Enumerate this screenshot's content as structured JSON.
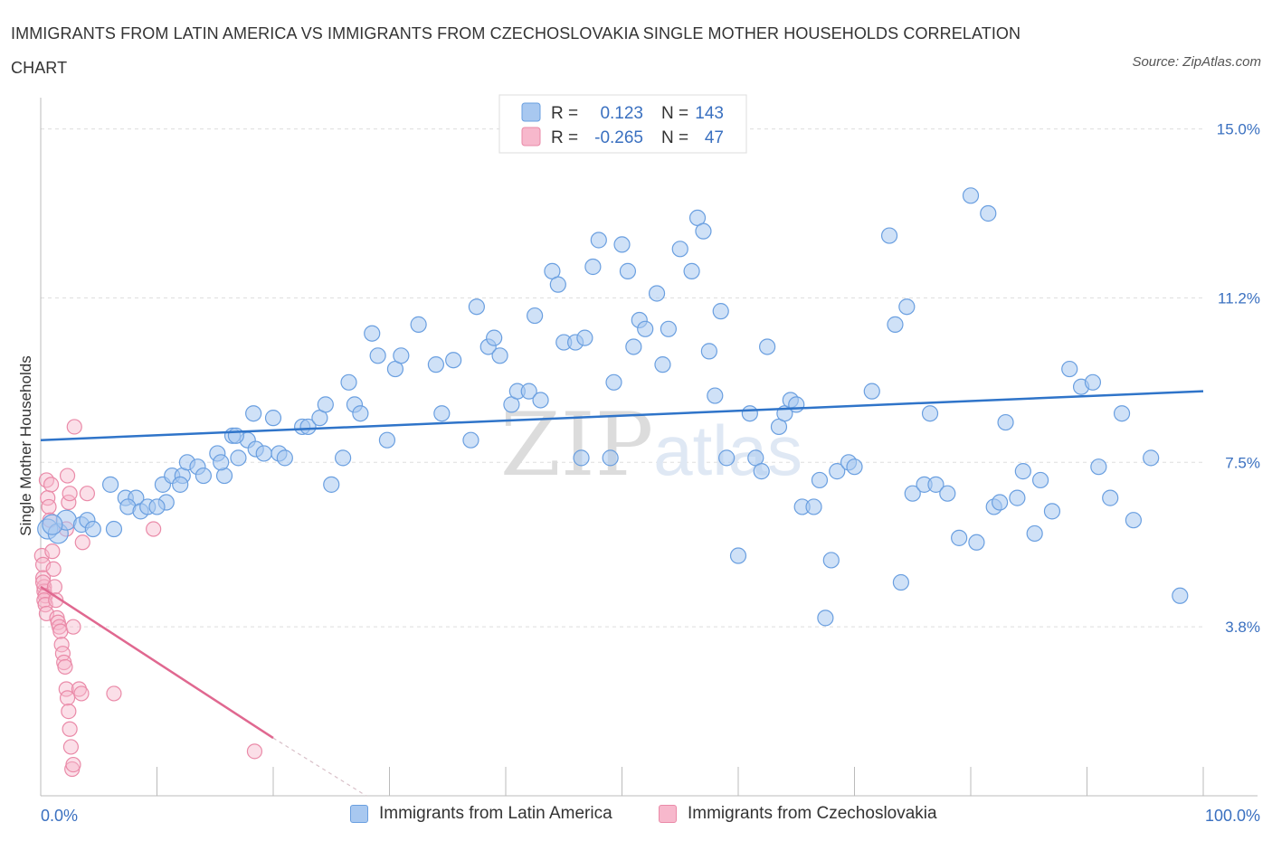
{
  "title": "IMMIGRANTS FROM LATIN AMERICA VS IMMIGRANTS FROM CZECHOSLOVAKIA SINGLE MOTHER HOUSEHOLDS CORRELATION CHART",
  "source": "Source: ZipAtlas.com",
  "watermark": "ZIPatlas",
  "colors": {
    "blue_fill": "#a8c8f0",
    "blue_stroke": "#6a9fe0",
    "blue_line": "#2f74c9",
    "pink_fill": "#f7b8cc",
    "pink_stroke": "#ea8aa8",
    "pink_line": "#e06890",
    "axis_label": "#3a70c0",
    "grid": "#dddddd"
  },
  "legend_top": {
    "rows": [
      {
        "r_label": "R =",
        "r_value": "0.123",
        "n_label": "N =",
        "n_value": "143"
      },
      {
        "r_label": "R =",
        "r_value": "-0.265",
        "n_label": "N =",
        "n_value": "47"
      }
    ]
  },
  "legend_bottom": [
    "Immigrants from Latin America",
    "Immigrants from Czechoslovakia"
  ],
  "chart_data": {
    "type": "scatter",
    "title": "IMMIGRANTS FROM LATIN AMERICA VS IMMIGRANTS FROM CZECHOSLOVAKIA SINGLE MOTHER HOUSEHOLDS CORRELATION CHART",
    "xlabel": "",
    "ylabel": "Single Mother Households",
    "xlim": [
      0,
      100
    ],
    "ylim": [
      0,
      15.5
    ],
    "x_tick_labels": [
      "0.0%",
      "100.0%"
    ],
    "y_ticks": [
      3.8,
      7.5,
      11.2,
      15.0
    ],
    "y_tick_labels": [
      "3.8%",
      "7.5%",
      "11.2%",
      "15.0%"
    ],
    "grid": "horizontal dashed",
    "legend_placement": "top-center and bottom",
    "series": [
      {
        "name": "Immigrants from Latin America",
        "R": 0.123,
        "N": 143,
        "trend": {
          "x": [
            0,
            100
          ],
          "y": [
            8.0,
            9.1
          ]
        },
        "points": [
          [
            0.6,
            6.0
          ],
          [
            1.5,
            5.9
          ],
          [
            2.2,
            6.2
          ],
          [
            1.0,
            6.1
          ],
          [
            3.5,
            6.1
          ],
          [
            4.0,
            6.2
          ],
          [
            4.5,
            6.0
          ],
          [
            6.3,
            6.0
          ],
          [
            7.3,
            6.7
          ],
          [
            6.0,
            7.0
          ],
          [
            8.2,
            6.7
          ],
          [
            7.5,
            6.5
          ],
          [
            8.6,
            6.4
          ],
          [
            9.2,
            6.5
          ],
          [
            10.8,
            6.6
          ],
          [
            10.0,
            6.5
          ],
          [
            10.5,
            7.0
          ],
          [
            11.3,
            7.2
          ],
          [
            12.2,
            7.2
          ],
          [
            12.6,
            7.5
          ],
          [
            13.5,
            7.4
          ],
          [
            12.0,
            7.0
          ],
          [
            14.0,
            7.2
          ],
          [
            15.2,
            7.7
          ],
          [
            15.8,
            7.2
          ],
          [
            15.5,
            7.5
          ],
          [
            16.5,
            8.1
          ],
          [
            17.0,
            7.6
          ],
          [
            17.8,
            8.0
          ],
          [
            18.5,
            7.8
          ],
          [
            19.2,
            7.7
          ],
          [
            20.5,
            7.7
          ],
          [
            21.0,
            7.6
          ],
          [
            16.8,
            8.1
          ],
          [
            18.3,
            8.6
          ],
          [
            20.0,
            8.5
          ],
          [
            22.5,
            8.3
          ],
          [
            23.0,
            8.3
          ],
          [
            24.0,
            8.5
          ],
          [
            24.5,
            8.8
          ],
          [
            25.0,
            7.0
          ],
          [
            26.0,
            7.6
          ],
          [
            26.5,
            9.3
          ],
          [
            27.0,
            8.8
          ],
          [
            27.5,
            8.6
          ],
          [
            28.5,
            10.4
          ],
          [
            29.0,
            9.9
          ],
          [
            29.8,
            8.0
          ],
          [
            30.5,
            9.6
          ],
          [
            31.0,
            9.9
          ],
          [
            32.5,
            10.6
          ],
          [
            34.0,
            9.7
          ],
          [
            34.5,
            8.6
          ],
          [
            35.5,
            9.8
          ],
          [
            37.0,
            8.0
          ],
          [
            37.5,
            11.0
          ],
          [
            38.5,
            10.1
          ],
          [
            39.0,
            10.3
          ],
          [
            39.5,
            9.9
          ],
          [
            40.5,
            8.8
          ],
          [
            41.0,
            9.1
          ],
          [
            42.0,
            9.1
          ],
          [
            42.5,
            10.8
          ],
          [
            43.0,
            8.9
          ],
          [
            44.0,
            11.8
          ],
          [
            44.5,
            11.5
          ],
          [
            45.0,
            10.2
          ],
          [
            46.0,
            10.2
          ],
          [
            46.5,
            7.6
          ],
          [
            46.8,
            10.3
          ],
          [
            47.5,
            11.9
          ],
          [
            48.0,
            12.5
          ],
          [
            49.0,
            7.6
          ],
          [
            49.3,
            9.3
          ],
          [
            50.0,
            12.4
          ],
          [
            50.5,
            11.8
          ],
          [
            51.0,
            10.1
          ],
          [
            51.5,
            10.7
          ],
          [
            52.0,
            10.5
          ],
          [
            53.0,
            11.3
          ],
          [
            53.5,
            9.7
          ],
          [
            54.0,
            10.5
          ],
          [
            55.0,
            12.3
          ],
          [
            56.0,
            11.8
          ],
          [
            56.5,
            13.0
          ],
          [
            57.0,
            12.7
          ],
          [
            57.5,
            10.0
          ],
          [
            58.0,
            9.0
          ],
          [
            58.5,
            10.9
          ],
          [
            59.0,
            7.6
          ],
          [
            60.0,
            5.4
          ],
          [
            61.0,
            8.6
          ],
          [
            61.5,
            7.6
          ],
          [
            62.0,
            7.3
          ],
          [
            62.5,
            10.1
          ],
          [
            63.5,
            8.3
          ],
          [
            64.0,
            8.6
          ],
          [
            64.5,
            8.9
          ],
          [
            65.0,
            8.8
          ],
          [
            65.5,
            6.5
          ],
          [
            66.5,
            6.5
          ],
          [
            67.0,
            7.1
          ],
          [
            67.5,
            4.0
          ],
          [
            68.5,
            7.3
          ],
          [
            68.0,
            5.3
          ],
          [
            69.5,
            7.5
          ],
          [
            70.0,
            7.4
          ],
          [
            71.5,
            9.1
          ],
          [
            73.0,
            12.6
          ],
          [
            73.5,
            10.6
          ],
          [
            74.0,
            4.8
          ],
          [
            74.5,
            11.0
          ],
          [
            75.0,
            6.8
          ],
          [
            76.0,
            7.0
          ],
          [
            76.5,
            8.6
          ],
          [
            77.0,
            7.0
          ],
          [
            78.0,
            6.8
          ],
          [
            79.0,
            5.8
          ],
          [
            80.0,
            13.5
          ],
          [
            80.5,
            5.7
          ],
          [
            81.5,
            13.1
          ],
          [
            82.0,
            6.5
          ],
          [
            82.5,
            6.6
          ],
          [
            83.0,
            8.4
          ],
          [
            84.5,
            7.3
          ],
          [
            84.0,
            6.7
          ],
          [
            85.5,
            5.9
          ],
          [
            86.0,
            7.1
          ],
          [
            87.0,
            6.4
          ],
          [
            88.5,
            9.6
          ],
          [
            89.5,
            9.2
          ],
          [
            90.5,
            9.3
          ],
          [
            91.0,
            7.4
          ],
          [
            92.0,
            6.7
          ],
          [
            93.0,
            8.6
          ],
          [
            94.0,
            6.2
          ],
          [
            95.5,
            7.6
          ],
          [
            98.0,
            4.5
          ]
        ]
      },
      {
        "name": "Immigrants from Czechoslovakia",
        "R": -0.265,
        "N": 47,
        "trend": {
          "x": [
            0,
            20
          ],
          "y": [
            4.7,
            1.3
          ]
        },
        "trend_dashed": {
          "x": [
            20,
            28
          ],
          "y": [
            1.3,
            0.0
          ]
        },
        "points": [
          [
            0.1,
            5.4
          ],
          [
            0.2,
            5.2
          ],
          [
            0.2,
            4.9
          ],
          [
            0.3,
            4.7
          ],
          [
            0.3,
            4.6
          ],
          [
            0.4,
            4.5
          ],
          [
            0.3,
            4.4
          ],
          [
            0.4,
            4.3
          ],
          [
            0.5,
            4.1
          ],
          [
            0.2,
            4.8
          ],
          [
            0.5,
            7.1
          ],
          [
            0.6,
            6.7
          ],
          [
            0.7,
            6.5
          ],
          [
            0.8,
            6.2
          ],
          [
            0.9,
            7.0
          ],
          [
            1.0,
            5.5
          ],
          [
            1.1,
            5.1
          ],
          [
            1.2,
            4.7
          ],
          [
            1.3,
            4.4
          ],
          [
            1.4,
            4.0
          ],
          [
            1.5,
            3.9
          ],
          [
            1.6,
            3.8
          ],
          [
            1.7,
            3.7
          ],
          [
            1.8,
            3.4
          ],
          [
            1.9,
            3.2
          ],
          [
            2.0,
            3.0
          ],
          [
            2.1,
            2.9
          ],
          [
            2.2,
            2.4
          ],
          [
            2.3,
            2.2
          ],
          [
            2.4,
            1.9
          ],
          [
            2.5,
            1.5
          ],
          [
            2.6,
            1.1
          ],
          [
            2.7,
            0.6
          ],
          [
            2.8,
            0.7
          ],
          [
            2.2,
            6.0
          ],
          [
            2.3,
            7.2
          ],
          [
            2.4,
            6.6
          ],
          [
            2.5,
            6.8
          ],
          [
            2.8,
            3.8
          ],
          [
            2.9,
            8.3
          ],
          [
            3.3,
            2.4
          ],
          [
            3.5,
            2.3
          ],
          [
            3.6,
            5.7
          ],
          [
            4.0,
            6.8
          ],
          [
            6.3,
            2.3
          ],
          [
            9.7,
            6.0
          ],
          [
            18.4,
            1.0
          ]
        ]
      }
    ]
  }
}
